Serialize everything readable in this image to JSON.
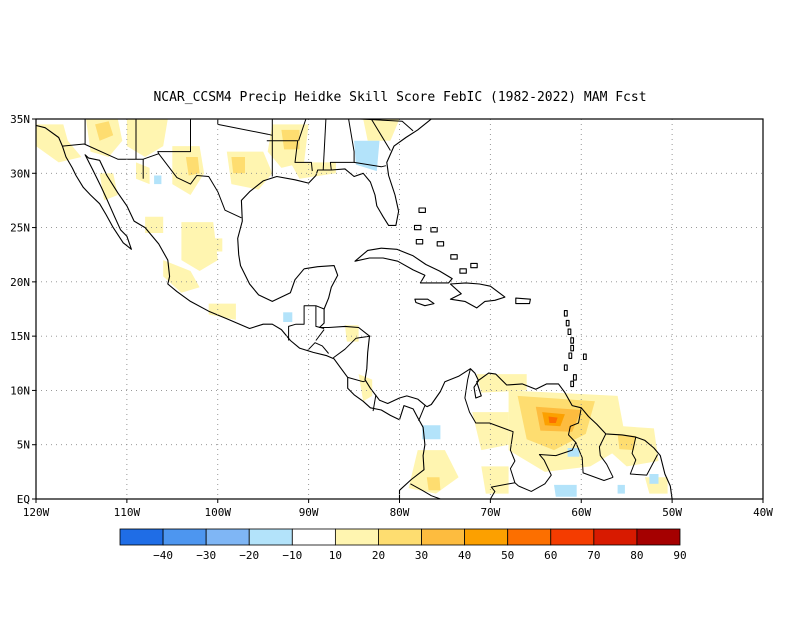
{
  "title": "NCAR_CCSM4 Precip Heidke Skill Score FebIC (1982-2022) MAM Fcst",
  "map": {
    "lon_range": [
      -120,
      -40
    ],
    "lat_range": [
      0,
      35
    ],
    "x_ticks": [
      {
        "lon": -120,
        "label": "120W"
      },
      {
        "lon": -110,
        "label": "110W"
      },
      {
        "lon": -100,
        "label": "100W"
      },
      {
        "lon": -90,
        "label": "90W"
      },
      {
        "lon": -80,
        "label": "80W"
      },
      {
        "lon": -70,
        "label": "70W"
      },
      {
        "lon": -60,
        "label": "60W"
      },
      {
        "lon": -50,
        "label": "50W"
      },
      {
        "lon": -40,
        "label": "40W"
      }
    ],
    "y_ticks": [
      {
        "lat": 0,
        "label": "EQ"
      },
      {
        "lat": 5,
        "label": "5N"
      },
      {
        "lat": 10,
        "label": "10N"
      },
      {
        "lat": 15,
        "label": "15N"
      },
      {
        "lat": 20,
        "label": "20N"
      },
      {
        "lat": 25,
        "label": "25N"
      },
      {
        "lat": 30,
        "label": "30N"
      },
      {
        "lat": 35,
        "label": "35N"
      }
    ],
    "grid": "dotted"
  },
  "colorbar": {
    "colors": [
      "#1f6de6",
      "#4d96f0",
      "#7fb6f5",
      "#b3e3fa",
      "#ffffff",
      "#fff5b0",
      "#fedd70",
      "#fdbc3f",
      "#fca000",
      "#fc6f00",
      "#f43c00",
      "#d81a00",
      "#a50000"
    ],
    "labels": [
      "-40",
      "-30",
      "-20",
      "-10",
      "10",
      "20",
      "30",
      "40",
      "50",
      "60",
      "70",
      "80",
      "90"
    ]
  },
  "field_colors": {
    "pale_yellow": "#fff5b0",
    "light_orange": "#fedd70",
    "orange": "#fdbc3f",
    "dark_orange": "#fca000",
    "red_orange": "#fc6f00",
    "light_blue": "#b3e3fa",
    "blue": "#7fb6f5"
  }
}
